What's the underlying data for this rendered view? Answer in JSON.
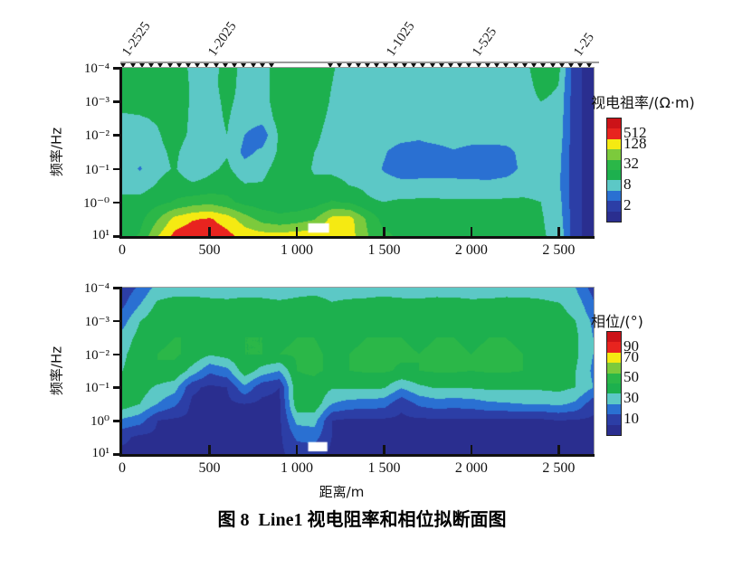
{
  "figure": {
    "caption_prefix": "图 8",
    "caption_text": "Line1 视电阻率和相位拟断面图",
    "xlabel": "距离/m"
  },
  "palette": {
    "bins_low_to_high": [
      "#2a2e8f",
      "#2c3ea6",
      "#2a70d2",
      "#5cc8c6",
      "#1db04e",
      "#2bb748",
      "#7cca3c",
      "#f5ea12",
      "#e8241f",
      "#cc1318"
    ],
    "no_data": "#ffffff",
    "axis": "#111111"
  },
  "station_axis": {
    "labels": [
      {
        "text": "1-2525",
        "x_m": 55
      },
      {
        "text": "1-2025",
        "x_m": 549
      },
      {
        "text": "1-1025",
        "x_m": 1570
      },
      {
        "text": "1-525",
        "x_m": 2062
      },
      {
        "text": "1-25",
        "x_m": 2642
      }
    ],
    "tick_runs_m": [
      [
        10,
        860
      ],
      [
        1195,
        2680
      ]
    ],
    "tick_spacing_m": 53
  },
  "chart_data": [
    {
      "type": "heatmap",
      "name": "apparent-resistivity-pseudosection",
      "ylabel": "频率/Hz",
      "x_unit": "m",
      "x_range": [
        0,
        2700
      ],
      "log10_freq_range": [
        -4,
        1
      ],
      "xticks": [
        0,
        500,
        1000,
        1500,
        2000,
        2500
      ],
      "xtick_labels": [
        "0",
        "500",
        "1 000",
        "1 500",
        "2 000",
        "2 500"
      ],
      "ytick_log10f": [
        -4,
        -3,
        -2,
        -1,
        0,
        1
      ],
      "ytick_labels": [
        "10⁻⁴",
        "10⁻³",
        "10⁻²",
        "10⁻¹",
        "10⁻⁰",
        "10¹"
      ],
      "legend": {
        "title": "视电祖率/(Ω·m)",
        "tick_labels": [
          "512",
          "128",
          "32",
          "8",
          "2"
        ],
        "tick_segment_index_from_top": [
          1,
          2,
          4,
          6,
          8
        ]
      },
      "scale": "log2",
      "bin_thresholds": [
        2,
        4,
        8,
        16,
        32,
        64,
        128,
        256,
        512
      ],
      "grid": {
        "x_m": [
          0,
          100,
          200,
          300,
          400,
          500,
          600,
          700,
          800,
          900,
          1000,
          1100,
          1200,
          1300,
          1400,
          1500,
          1600,
          1700,
          1800,
          1900,
          2000,
          2100,
          2200,
          2300,
          2400,
          2500,
          2600,
          2700
        ],
        "log10_freq": [
          -4,
          -3.5,
          -3,
          -2.5,
          -2,
          -1.5,
          -1,
          -0.5,
          0,
          0.5,
          1
        ],
        "values_ohm_m": [
          [
            24,
            17,
            26,
            28,
            13,
            12,
            21,
            13,
            12,
            24,
            28,
            26,
            17,
            12,
            12,
            12,
            12,
            12,
            12,
            12,
            12,
            12,
            12,
            13,
            23,
            20,
            2.3,
            1.5
          ],
          [
            23,
            18,
            26,
            28,
            14,
            13,
            20,
            13,
            12,
            24,
            28,
            24,
            16,
            12,
            12,
            12,
            12,
            12,
            12,
            12,
            12,
            12,
            12,
            12,
            20,
            16,
            2.3,
            1.5
          ],
          [
            21,
            21,
            28,
            28,
            14,
            13,
            18,
            13,
            12,
            23,
            28,
            23,
            15,
            12,
            12,
            12,
            12,
            12,
            12,
            12,
            12,
            12,
            12,
            12,
            16,
            14,
            2.3,
            1.5
          ],
          [
            14,
            15,
            17,
            24,
            14,
            13,
            17,
            11,
            10,
            21,
            26,
            20,
            14,
            12,
            12,
            12,
            12,
            12,
            12,
            12,
            12,
            12,
            12,
            12,
            14,
            13,
            2.3,
            1.5
          ],
          [
            13,
            13,
            15,
            21,
            14,
            13,
            16,
            8,
            5.3,
            18,
            24,
            18,
            13,
            12,
            12,
            12,
            10.6,
            9.2,
            11.3,
            12,
            12,
            12,
            11.3,
            12,
            13,
            12,
            2.3,
            1.5
          ],
          [
            12,
            11.3,
            14,
            18,
            11.3,
            12,
            15,
            6.5,
            9.2,
            18,
            23,
            16,
            13,
            12,
            12,
            8.6,
            5.7,
            5.7,
            6,
            7.5,
            6,
            5.7,
            6.5,
            9.8,
            12,
            10.6,
            2.3,
            1.5
          ],
          [
            12,
            7.5,
            13,
            17,
            9.8,
            14,
            18,
            10.6,
            13,
            21,
            21,
            15,
            14,
            13,
            12,
            7.5,
            5.7,
            5.3,
            5.7,
            6,
            5.7,
            5.3,
            6,
            9.2,
            11.3,
            9.8,
            2.3,
            1.5
          ],
          [
            14,
            12,
            17,
            23,
            18,
            20,
            24,
            17,
            17,
            24,
            20,
            18,
            20,
            16,
            14,
            10.6,
            9.8,
            10.6,
            10.6,
            9.8,
            9.8,
            9.8,
            10.6,
            12,
            12,
            9.2,
            2.3,
            1.5
          ],
          [
            18,
            20,
            26,
            34,
            45,
            52,
            39,
            26,
            23,
            23,
            21,
            24,
            34,
            30,
            18,
            16,
            18,
            18,
            18,
            18,
            18,
            18,
            18,
            18,
            16,
            10.6,
            2.3,
            1.5
          ],
          [
            21,
            26,
            60,
            158,
            239,
            274,
            181,
            90,
            48,
            37,
            45,
            60,
            158,
            169,
            60,
            24,
            24,
            24,
            24,
            24,
            24,
            24,
            24,
            21,
            17,
            12,
            2.3,
            1.5
          ],
          [
            24,
            34,
            119,
            315,
            416,
            416,
            315,
            194,
            169,
            169,
            181,
            194,
            208,
            181,
            69,
            37,
            28,
            28,
            28,
            28,
            28,
            28,
            28,
            24,
            17,
            14,
            2.3,
            1.5
          ]
        ]
      },
      "no_data_gap": {
        "x_m": [
          1065,
          1185
        ],
        "log10_freq": [
          0.62,
          0.9
        ]
      }
    },
    {
      "type": "heatmap",
      "name": "phase-pseudosection",
      "ylabel": "频率/Hz",
      "x_unit": "m",
      "x_range": [
        0,
        2700
      ],
      "log10_freq_range": [
        -4,
        1
      ],
      "xticks": [
        0,
        500,
        1000,
        1500,
        2000,
        2500
      ],
      "xtick_labels": [
        "0",
        "500",
        "1 000",
        "1 500",
        "2 000",
        "2 500"
      ],
      "ytick_log10f": [
        -4,
        -3,
        -2,
        -1,
        0,
        1
      ],
      "ytick_labels": [
        "10⁻⁴",
        "10⁻³",
        "10⁻²",
        "10⁻¹",
        "10⁰",
        "10¹"
      ],
      "legend": {
        "title": "相位/(°)",
        "tick_labels": [
          "90",
          "70",
          "50",
          "30",
          "10"
        ],
        "tick_segment_index_from_top": [
          1,
          2,
          4,
          6,
          8
        ]
      },
      "scale": "linear",
      "bin_thresholds": [
        10,
        20,
        30,
        40,
        50,
        60,
        70,
        80,
        90
      ],
      "grid": {
        "x_m": [
          0,
          100,
          200,
          300,
          400,
          500,
          600,
          700,
          800,
          900,
          1000,
          1100,
          1200,
          1300,
          1400,
          1500,
          1600,
          1700,
          1800,
          1900,
          2000,
          2100,
          2200,
          2300,
          2400,
          2500,
          2600,
          2700
        ],
        "log10_freq": [
          -4,
          -3.5,
          -3,
          -2.5,
          -2,
          -1.5,
          -1,
          -0.5,
          0,
          0.5,
          1
        ],
        "values_deg": [
          [
            14,
            22,
            34,
            36,
            35,
            34,
            34,
            35,
            34,
            32,
            35,
            36,
            35,
            34,
            34,
            35,
            34,
            33,
            34,
            35,
            34,
            33,
            34,
            35,
            34,
            33,
            30,
            16
          ],
          [
            18,
            30,
            42,
            44,
            45,
            44,
            43,
            44,
            44,
            43,
            44,
            45,
            41,
            43,
            44,
            45,
            44,
            44,
            45,
            44,
            43,
            44,
            45,
            44,
            43,
            41,
            36,
            22
          ],
          [
            26,
            40,
            47,
            48,
            48,
            48,
            47,
            48,
            48,
            47,
            48,
            48,
            46,
            47,
            48,
            48,
            48,
            47,
            48,
            48,
            47,
            48,
            48,
            47,
            46,
            44,
            40,
            28
          ],
          [
            34,
            44,
            49,
            50,
            50,
            50,
            49,
            50,
            50,
            49,
            50,
            50,
            48,
            49,
            50,
            50,
            50,
            49,
            50,
            50,
            49,
            50,
            50,
            49,
            48,
            46,
            42,
            30
          ],
          [
            38,
            46,
            50,
            51,
            48,
            41,
            44,
            50,
            50,
            50,
            51,
            51,
            49,
            50,
            51,
            51,
            51,
            50,
            51,
            51,
            50,
            51,
            51,
            50,
            49,
            47,
            42,
            30
          ],
          [
            40,
            46,
            50,
            48,
            36,
            22,
            27,
            46,
            36,
            30,
            50,
            51,
            49,
            50,
            51,
            51,
            49,
            50,
            51,
            51,
            50,
            51,
            51,
            50,
            48,
            46,
            40,
            28
          ],
          [
            46,
            45,
            38,
            34,
            12,
            8,
            10,
            28,
            13,
            10,
            48,
            48,
            41,
            41,
            42,
            41,
            31,
            38,
            41,
            41,
            41,
            42,
            42,
            42,
            42,
            43,
            40,
            30
          ],
          [
            46,
            40,
            30,
            22,
            8,
            8,
            8,
            10,
            8,
            8,
            47,
            47,
            30,
            26,
            25,
            24,
            12,
            22,
            25,
            24,
            25,
            28,
            29,
            30,
            30,
            32,
            28,
            14
          ],
          [
            28,
            24,
            10,
            8,
            8,
            8,
            8,
            8,
            8,
            8,
            33,
            34,
            10,
            8,
            8,
            8,
            8,
            8,
            8,
            8,
            8,
            8,
            8,
            8,
            8,
            10,
            9,
            8
          ],
          [
            12,
            8,
            8,
            8,
            8,
            8,
            8,
            8,
            8,
            8,
            22,
            24,
            10,
            8,
            8,
            8,
            8,
            8,
            8,
            8,
            8,
            8,
            8,
            8,
            8,
            8,
            8,
            8
          ],
          [
            8,
            8,
            8,
            8,
            8,
            8,
            8,
            8,
            8,
            8,
            14,
            14,
            8,
            8,
            8,
            8,
            8,
            8,
            8,
            8,
            8,
            8,
            8,
            8,
            8,
            8,
            8,
            8
          ]
        ]
      },
      "no_data_gap": {
        "x_m": [
          1065,
          1175
        ],
        "log10_freq": [
          0.64,
          0.92
        ]
      }
    }
  ]
}
